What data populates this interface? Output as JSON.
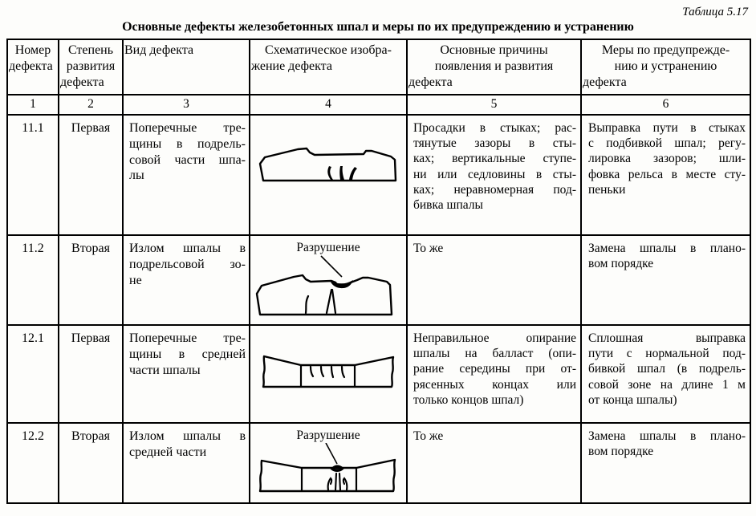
{
  "caption": "Таблица 5.17",
  "title": "Основные дефекты железобетонных шпал и меры по их предупреждению и устранению",
  "table": {
    "headers": [
      "Номер\nдефекта",
      "Степень\nразвития\nдефекта",
      "Вид дефекта",
      "Схематическое изобра-\nжение дефекта",
      "Основные причины\nпоявления и развития\nдефекта",
      "Меры по предупрежде-\nнию и устранению\nдефекта"
    ],
    "column_numbers": [
      "1",
      "2",
      "3",
      "4",
      "5",
      "6"
    ],
    "rows": [
      {
        "number": "11.1",
        "degree": "Первая",
        "defect_type": "Поперечные тре-\nщины в подрель-\nсовой части шпа-\nлы",
        "schematic": "sleeper-rail-seat-zone-with-transverse-cracks",
        "schematic_label": "",
        "causes": "Просадки в стыках; рас-\nтянутые зазоры в сты-\nках; вертикальные ступе-\nни или седловины в сты-\nках; неравномерная под-\nбивка шпалы",
        "measures": "Выправка пути в стыках\nс подбивкой шпал; регу-\nлировка зазоров; шли-\nфовка рельса в месте сту-\nпеньки"
      },
      {
        "number": "11.2",
        "degree": "Вторая",
        "defect_type": "Излом шпалы в\nподрельсовой зо-\nне",
        "schematic": "sleeper-rail-seat-zone-fracture",
        "schematic_label": "Разрушение",
        "causes": "То же",
        "measures": "Замена шпалы в плано-\nвом порядке"
      },
      {
        "number": "12.1",
        "degree": "Первая",
        "defect_type": "Поперечные тре-\nщины в средней\nчасти шпалы",
        "schematic": "sleeper-middle-part-with-transverse-cracks",
        "schematic_label": "",
        "causes": "Неправильное опирание\nшпалы на балласт (опи-\nрание середины при от-\nрясенных концах или\nтолько концов шпал)",
        "measures": "Сплошная выправка\nпути с нормальной под-\nбивкой шпал (в подрель-\nсовой зоне на длине 1 м\nот конца шпалы)"
      },
      {
        "number": "12.2",
        "degree": "Вторая",
        "defect_type": "Излом шпалы в\nсредней части",
        "schematic": "sleeper-middle-part-fracture",
        "schematic_label": "Разрушение",
        "causes": "То же",
        "measures": "Замена шпалы в плано-\nвом порядке"
      }
    ]
  }
}
